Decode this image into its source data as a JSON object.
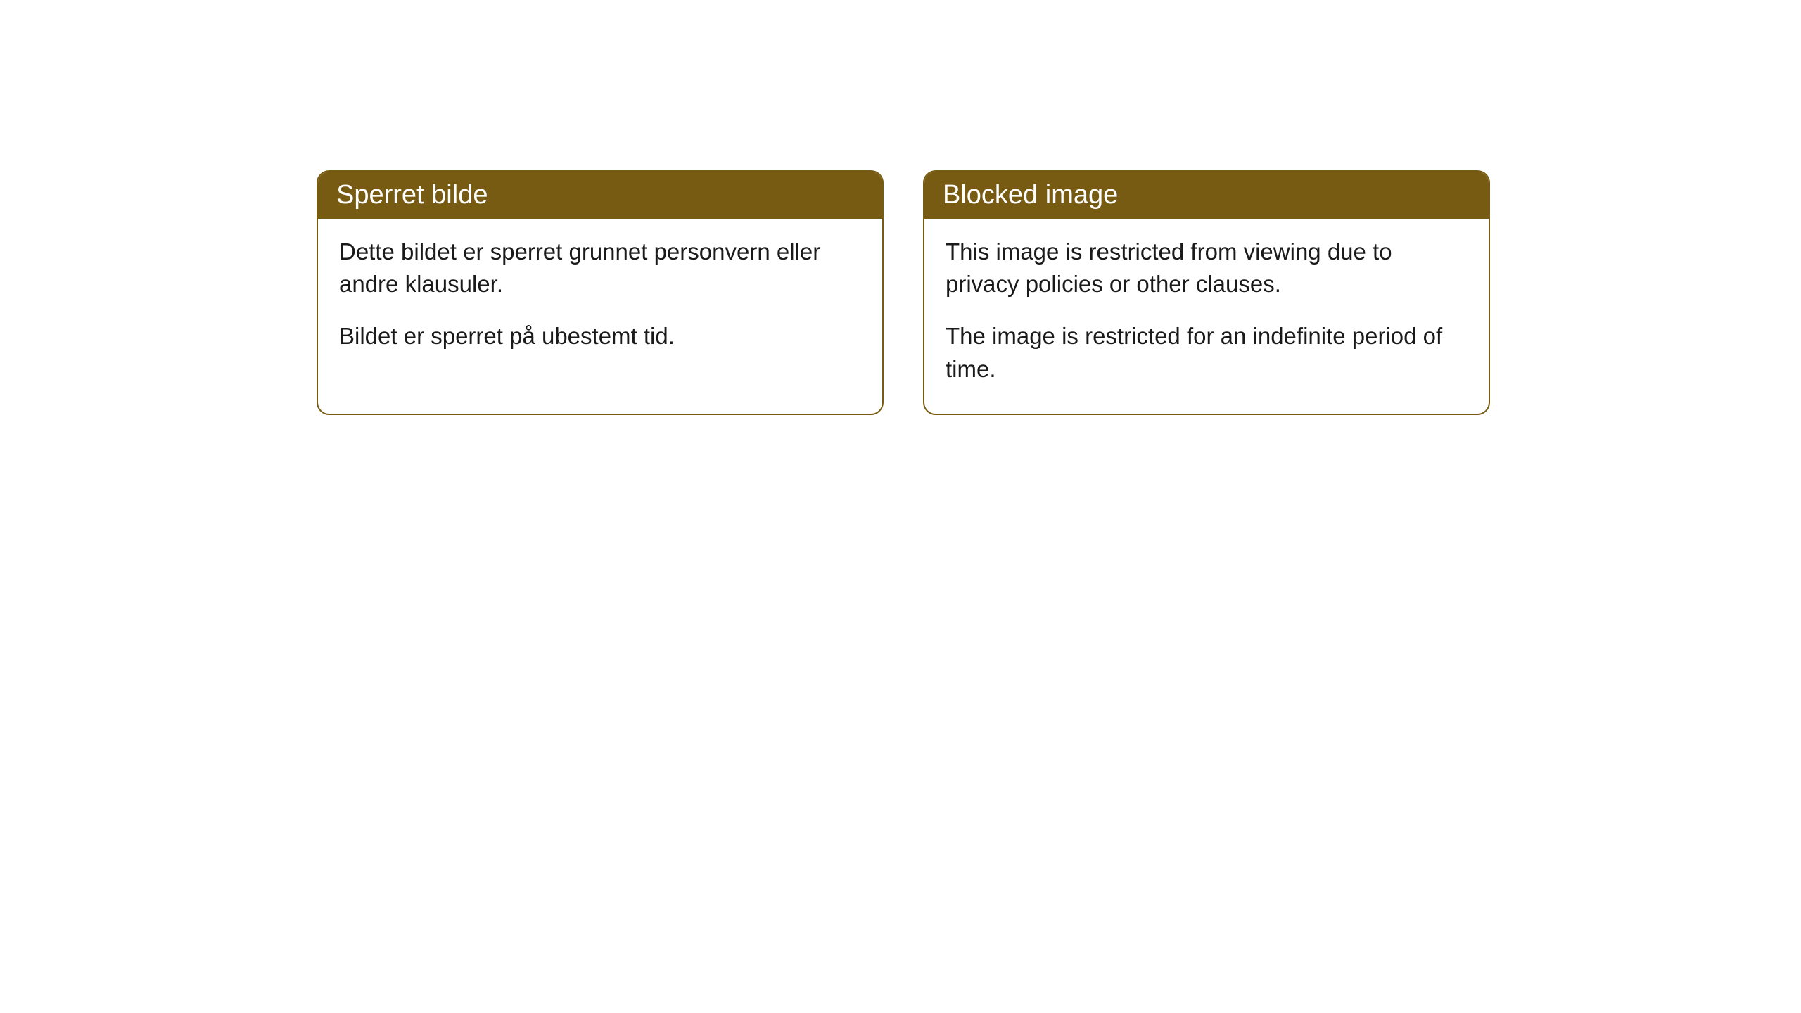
{
  "cards": [
    {
      "title": "Sperret bilde",
      "paragraph1": "Dette bildet er sperret grunnet personvern eller andre klausuler.",
      "paragraph2": "Bildet er sperret på ubestemt tid."
    },
    {
      "title": "Blocked image",
      "paragraph1": "This image is restricted from viewing due to privacy policies or other clauses.",
      "paragraph2": "The image is restricted for an indefinite period of time."
    }
  ],
  "styling": {
    "header_background_color": "#785b12",
    "header_text_color": "#ffffff",
    "border_color": "#785b12",
    "card_background_color": "#ffffff",
    "body_text_color": "#1a1a1a",
    "border_radius": 18,
    "header_font_size": 38,
    "body_font_size": 33
  }
}
